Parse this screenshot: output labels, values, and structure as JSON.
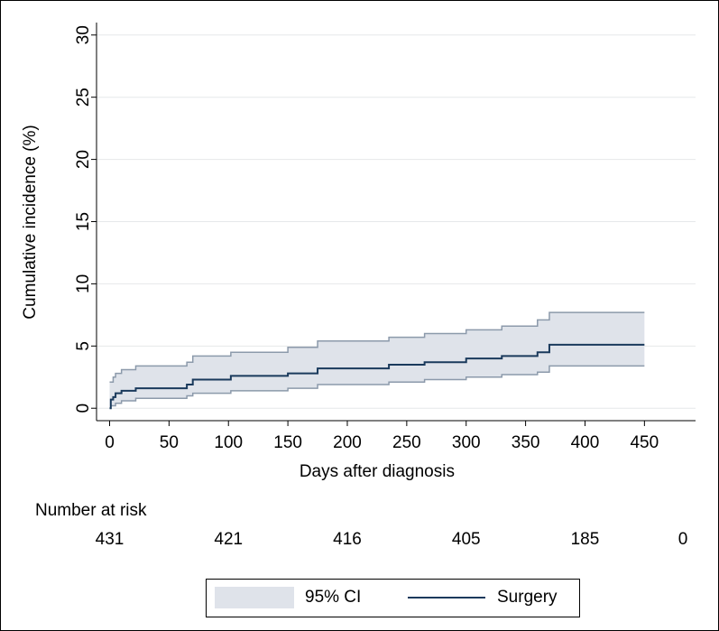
{
  "chart_data": {
    "type": "step",
    "xlabel": "Days after diagnosis",
    "ylabel": "Cumulative incidence (%)",
    "x": [
      0,
      1,
      3,
      5,
      10,
      22,
      65,
      70,
      102,
      150,
      175,
      235,
      265,
      300,
      330,
      360,
      370,
      450
    ],
    "series": [
      {
        "name": "95% CI",
        "color": "#dfe3ea",
        "line_color": "#8c9aab",
        "lower": [
          0,
          0.2,
          0.2,
          0.4,
          0.6,
          0.8,
          1.0,
          1.2,
          1.4,
          1.6,
          1.9,
          2.1,
          2.3,
          2.5,
          2.7,
          2.9,
          3.4,
          3.4
        ],
        "upper": [
          2.1,
          2.1,
          2.5,
          2.8,
          3.1,
          3.4,
          3.7,
          4.2,
          4.5,
          4.9,
          5.4,
          5.7,
          6.0,
          6.3,
          6.6,
          7.1,
          7.7,
          7.7
        ]
      },
      {
        "name": "Surgery",
        "color": "#1a3a5c",
        "values": [
          0,
          0.7,
          0.9,
          1.2,
          1.4,
          1.6,
          1.9,
          2.3,
          2.6,
          2.8,
          3.2,
          3.5,
          3.7,
          4.0,
          4.2,
          4.5,
          5.1,
          5.1
        ]
      }
    ],
    "xlim": [
      -11,
      493
    ],
    "xticks": [
      0,
      50,
      100,
      150,
      200,
      250,
      300,
      350,
      400,
      450
    ],
    "ylim": [
      -1,
      31
    ],
    "yticks": [
      0,
      5,
      10,
      15,
      20,
      25,
      30
    ],
    "grid": true,
    "risk_table": {
      "label": "Number at risk",
      "values": [
        431,
        421,
        416,
        405,
        185,
        0
      ]
    }
  }
}
